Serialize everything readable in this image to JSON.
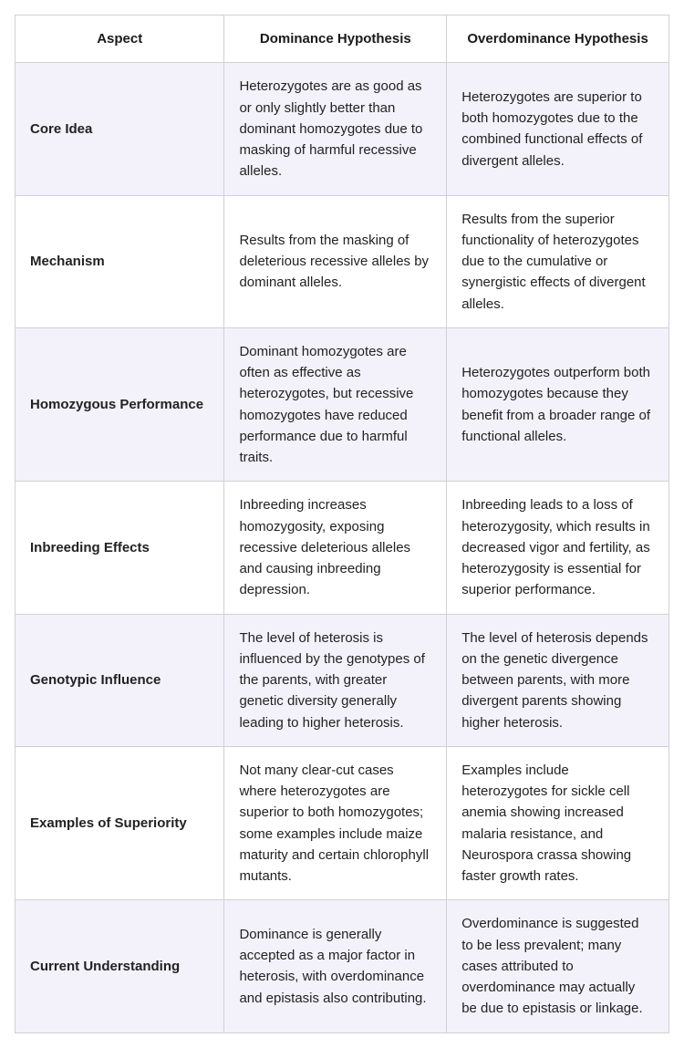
{
  "colors": {
    "border": "#d0d0d8",
    "tint_bg": "#f3f2fb",
    "plain_bg": "#ffffff",
    "text": "#1a1a1a"
  },
  "table": {
    "headers": {
      "aspect": "Aspect",
      "dominance": "Dominance Hypothesis",
      "overdominance": "Overdominance Hypothesis"
    },
    "rows": [
      {
        "aspect": "Core Idea",
        "dominance": "Heterozygotes are as good as or only slightly better than dominant homozygotes due to masking of harmful recessive alleles.",
        "overdominance": "Heterozygotes are superior to both homozygotes due to the combined functional effects of divergent alleles.",
        "tint": true
      },
      {
        "aspect": "Mechanism",
        "dominance": "Results from the masking of deleterious recessive alleles by dominant alleles.",
        "overdominance": "Results from the superior functionality of heterozygotes due to the cumulative or synergistic effects of divergent alleles.",
        "tint": false
      },
      {
        "aspect": "Homozygous Performance",
        "dominance": "Dominant homozygotes are often as effective as heterozygotes, but recessive homozygotes have reduced performance due to harmful traits.",
        "overdominance": "Heterozygotes outperform both homozygotes because they benefit from a broader range of functional alleles.",
        "tint": true
      },
      {
        "aspect": "Inbreeding Effects",
        "dominance": "Inbreeding increases homozygosity, exposing recessive deleterious alleles and causing inbreeding depression.",
        "overdominance": "Inbreeding leads to a loss of heterozygosity, which results in decreased vigor and fertility, as heterozygosity is essential for superior performance.",
        "tint": false
      },
      {
        "aspect": "Genotypic Influence",
        "dominance": "The level of heterosis is influenced by the genotypes of the parents, with greater genetic diversity generally leading to higher heterosis.",
        "overdominance": "The level of heterosis depends on the genetic divergence between parents, with more divergent parents showing higher heterosis.",
        "tint": true
      },
      {
        "aspect": "Examples of Superiority",
        "dominance": "Not many clear-cut cases where heterozygotes are superior to both homozygotes; some examples include maize maturity and certain chlorophyll mutants.",
        "overdominance": "Examples include heterozygotes for sickle cell anemia showing increased malaria resistance, and Neurospora crassa showing faster growth rates.",
        "tint": false
      },
      {
        "aspect": "Current Understanding",
        "dominance": "Dominance is generally accepted as a major factor in heterosis, with overdominance and epistasis also contributing.",
        "overdominance": "Overdominance is suggested to be less prevalent; many cases attributed to overdominance may actually be due to epistasis or linkage.",
        "tint": true
      }
    ]
  }
}
